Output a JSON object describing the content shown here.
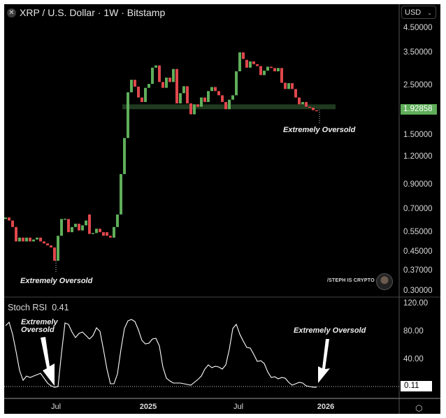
{
  "header": {
    "title": "XRP / U.S. Dollar · 1W · Bitstamp",
    "close_icon": "close-icon"
  },
  "currency_selector": {
    "value": "USD"
  },
  "price_axis": {
    "labels": [
      "4.50000",
      "3.50000",
      "2.50000",
      "1.50000",
      "1.20000",
      "0.90000",
      "0.70000",
      "0.55000",
      "0.45000",
      "0.37000",
      "0.30000"
    ],
    "current_price": "1.92858"
  },
  "rsi_panel": {
    "title": "Stoch RSI",
    "value": "0.41",
    "axis_labels": [
      "120.00",
      "80.00",
      "40.00"
    ],
    "current_value": "0.11"
  },
  "time_axis": {
    "labels": [
      "Jul",
      "2025",
      "Jul",
      "2026"
    ]
  },
  "annotations": {
    "price_left": "Extremely Oversold",
    "price_right": "Extremely Oversold",
    "rsi_left_line1": "Extremely",
    "rsi_left_line2": "Oversold",
    "rsi_right": "Extremely Oversold"
  },
  "watermark": {
    "text": "/STEPH IS CRYPTO"
  },
  "colors": {
    "up": "#5fae5a",
    "down": "#e0474c",
    "support_zone": "#1f3a1f",
    "background": "#000000"
  },
  "chart_data": [
    {
      "type": "candlestick",
      "title": "XRP / U.S. Dollar · 1W · Bitstamp",
      "scale": "log",
      "ylim": [
        0.3,
        4.5
      ],
      "support_zone": [
        1.95,
        2.05
      ],
      "candles": [
        [
          0.63,
          0.64
        ],
        [
          0.64,
          0.62
        ],
        [
          0.62,
          0.58
        ],
        [
          0.58,
          0.5
        ],
        [
          0.5,
          0.52
        ],
        [
          0.52,
          0.5
        ],
        [
          0.5,
          0.52
        ],
        [
          0.52,
          0.5
        ],
        [
          0.5,
          0.51
        ],
        [
          0.51,
          0.52
        ],
        [
          0.52,
          0.5
        ],
        [
          0.5,
          0.49
        ],
        [
          0.49,
          0.48
        ],
        [
          0.48,
          0.47
        ],
        [
          0.47,
          0.41
        ],
        [
          0.41,
          0.53
        ],
        [
          0.53,
          0.63
        ],
        [
          0.63,
          0.632
        ],
        [
          0.63,
          0.55
        ],
        [
          0.55,
          0.58
        ],
        [
          0.58,
          0.6
        ],
        [
          0.6,
          0.56
        ],
        [
          0.56,
          0.59
        ],
        [
          0.59,
          0.62
        ],
        [
          0.66,
          0.54
        ],
        [
          0.54,
          0.545
        ],
        [
          0.545,
          0.57
        ],
        [
          0.57,
          0.55
        ],
        [
          0.55,
          0.53
        ],
        [
          0.55,
          0.53
        ],
        [
          0.53,
          0.52
        ],
        [
          0.52,
          0.58
        ],
        [
          0.58,
          0.66
        ],
        [
          0.66,
          1.0
        ],
        [
          1.0,
          1.45
        ],
        [
          1.45,
          2.32
        ],
        [
          2.32,
          2.64
        ],
        [
          2.64,
          2.46
        ],
        [
          2.46,
          2.2
        ],
        [
          2.2,
          2.1
        ],
        [
          2.1,
          2.43
        ],
        [
          2.43,
          2.53
        ],
        [
          2.53,
          2.99
        ],
        [
          2.99,
          3.06
        ],
        [
          3.06,
          2.58
        ],
        [
          2.58,
          2.43
        ],
        [
          2.43,
          2.7
        ],
        [
          2.7,
          2.58
        ],
        [
          2.58,
          2.95
        ],
        [
          2.95,
          2.07
        ],
        [
          2.07,
          2.3
        ],
        [
          2.3,
          2.47
        ],
        [
          2.47,
          2.07
        ],
        [
          2.07,
          1.85
        ],
        [
          1.85,
          2.05
        ],
        [
          2.05,
          2.0
        ],
        [
          2.0,
          2.2
        ],
        [
          2.2,
          2.1
        ],
        [
          2.1,
          2.35
        ],
        [
          2.35,
          2.45
        ],
        [
          2.45,
          2.35
        ],
        [
          2.35,
          2.25
        ],
        [
          2.25,
          2.1
        ],
        [
          2.1,
          1.95
        ],
        [
          1.95,
          2.15
        ],
        [
          2.15,
          2.25
        ],
        [
          2.25,
          2.88
        ],
        [
          2.88,
          3.5
        ],
        [
          3.5,
          3.27
        ],
        [
          3.24,
          2.99
        ],
        [
          2.99,
          3.19
        ],
        [
          3.19,
          3.1
        ],
        [
          3.1,
          3.04
        ],
        [
          3.04,
          2.77
        ],
        [
          2.77,
          2.9
        ],
        [
          2.9,
          3.02
        ],
        [
          3.02,
          2.98
        ],
        [
          2.98,
          2.88
        ],
        [
          2.88,
          2.98
        ],
        [
          2.98,
          2.56
        ],
        [
          2.56,
          2.4
        ],
        [
          2.4,
          2.55
        ],
        [
          2.55,
          2.4
        ],
        [
          2.4,
          2.2
        ],
        [
          2.2,
          2.05
        ],
        [
          2.05,
          2.1
        ],
        [
          2.1,
          2.0
        ],
        [
          2.0,
          1.98
        ],
        [
          1.98,
          1.93
        ],
        [
          1.93,
          1.92858
        ]
      ]
    },
    {
      "type": "line",
      "title": "Stoch RSI",
      "ylim": [
        0,
        120
      ],
      "values": [
        88,
        93,
        76,
        51,
        24,
        10,
        16,
        14,
        16,
        18,
        20,
        13,
        6,
        2,
        0,
        1,
        49,
        92,
        90,
        79,
        71,
        77,
        79,
        74,
        69,
        74,
        85,
        80,
        54,
        26,
        5,
        5,
        19,
        54,
        84,
        95,
        97,
        94,
        82,
        67,
        62,
        63,
        69,
        70,
        59,
        29,
        13,
        9,
        6,
        6,
        6,
        5,
        4,
        3,
        7,
        11,
        16,
        26,
        32,
        28,
        30,
        29,
        26,
        32,
        54,
        84,
        90,
        76,
        66,
        57,
        56,
        47,
        37,
        38,
        34,
        22,
        14,
        15,
        12,
        14,
        13,
        7,
        3,
        5,
        7,
        6,
        2,
        1,
        0.11,
        0.11
      ]
    }
  ]
}
